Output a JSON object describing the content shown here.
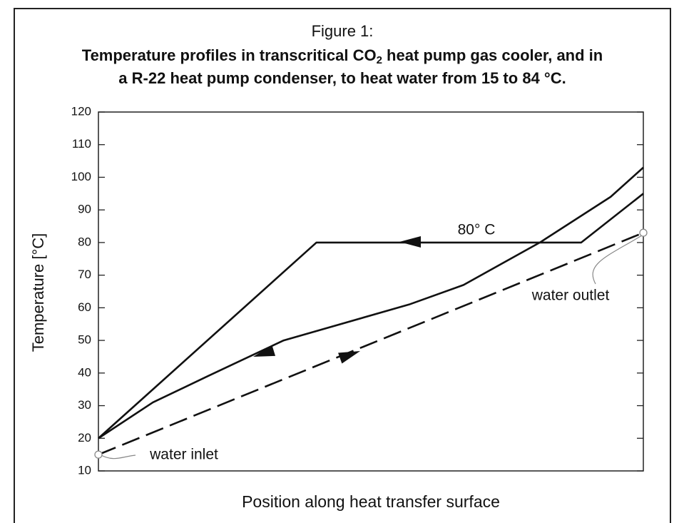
{
  "chart_data": {
    "type": "line",
    "title": "Figure 1:",
    "subtitle_parts": [
      "Temperature profiles in transcritical CO",
      "2",
      " heat pump gas cooler, and in",
      "a R-22 heat pump condenser, to heat water from 15 to 84 °C."
    ],
    "xlabel": "Position along heat transfer surface",
    "ylabel": "Temperature [°C]",
    "xlim": [
      0,
      100
    ],
    "ylim": [
      10,
      120
    ],
    "yticks": [
      10,
      20,
      30,
      40,
      50,
      60,
      70,
      80,
      90,
      100,
      110,
      120
    ],
    "series": [
      {
        "color": "#111111",
        "dashed": false,
        "x": [
          0,
          40,
          88.6,
          100
        ],
        "values": [
          20,
          80,
          80,
          95
        ]
      },
      {
        "color": "#111111",
        "dashed": false,
        "x": [
          0,
          10,
          20,
          34,
          57,
          67,
          81,
          94,
          100
        ],
        "values": [
          20,
          31,
          39,
          50,
          61,
          67,
          80,
          94,
          103
        ]
      },
      {
        "color": "#111111",
        "dashed": true,
        "x": [
          0,
          100
        ],
        "values": [
          15,
          83
        ]
      }
    ],
    "annotations": [
      "80° C",
      "water outlet",
      "water inlet"
    ]
  }
}
